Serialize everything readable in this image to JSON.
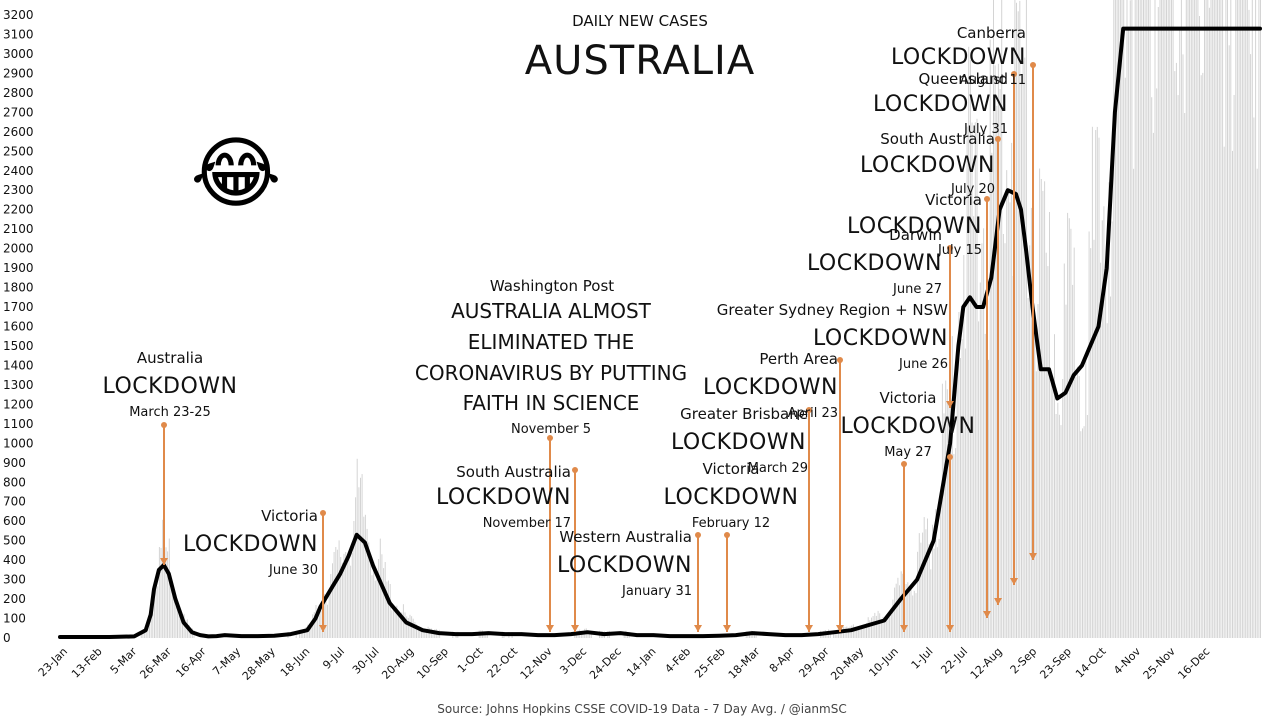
{
  "chart_data": {
    "type": "line",
    "subtitle": "DAILY NEW CASES",
    "title": "AUSTRALIA",
    "source": "Source: Johns Hopkins CSSE COVID-19 Data - 7 Day Avg. / @ianmSC",
    "ylim": [
      0,
      3200
    ],
    "yticks": [
      0,
      100,
      200,
      300,
      400,
      500,
      600,
      700,
      800,
      900,
      1000,
      1100,
      1200,
      1300,
      1400,
      1500,
      1600,
      1700,
      1800,
      1900,
      2000,
      2100,
      2200,
      2300,
      2400,
      2500,
      2600,
      2700,
      2800,
      2900,
      3000,
      3100,
      3200
    ],
    "xticks": [
      "23-Jan",
      "13-Feb",
      "5-Mar",
      "26-Mar",
      "16-Apr",
      "7-May",
      "28-May",
      "18-Jun",
      "9-Jul",
      "30-Jul",
      "20-Aug",
      "10-Sep",
      "1-Oct",
      "22-Oct",
      "12-Nov",
      "3-Dec",
      "24-Dec",
      "14-Jan",
      "4-Feb",
      "25-Feb",
      "18-Mar",
      "8-Apr",
      "29-Apr",
      "20-May",
      "10-Jun",
      "1-Jul",
      "22-Jul",
      "12-Aug",
      "2-Sep",
      "23-Sep",
      "14-Oct",
      "4-Nov",
      "25-Nov",
      "16-Dec"
    ],
    "grid": false,
    "series": [
      {
        "x": [
          0,
          15,
          30,
          45,
          52,
          55,
          57,
          60,
          63,
          66,
          70,
          75,
          80,
          85,
          90,
          95,
          100,
          110,
          120,
          130,
          140,
          150,
          155,
          158,
          165,
          170,
          175,
          180,
          185,
          190,
          200,
          210,
          220,
          230,
          240,
          250,
          260,
          270,
          280,
          290,
          300,
          310,
          320,
          330,
          340,
          350,
          360,
          370,
          380,
          390,
          400,
          410,
          420,
          430,
          440,
          450,
          460,
          470,
          480,
          500,
          510,
          520,
          530,
          540,
          545,
          548,
          552,
          556,
          560,
          565,
          570,
          575,
          580,
          583,
          586,
          590,
          595,
          600,
          605,
          610,
          615,
          620,
          625,
          630,
          635,
          640,
          645,
          650,
          655,
          660,
          665,
          670,
          675,
          680,
          685,
          690,
          695,
          700,
          705,
          710,
          715,
          720,
          725,
          728
        ],
        "y": [
          5,
          5,
          5,
          8,
          40,
          120,
          250,
          350,
          375,
          330,
          200,
          80,
          30,
          15,
          8,
          10,
          15,
          10,
          10,
          12,
          20,
          40,
          100,
          160,
          260,
          330,
          420,
          530,
          490,
          370,
          180,
          80,
          40,
          25,
          20,
          20,
          25,
          20,
          20,
          15,
          15,
          20,
          30,
          20,
          25,
          15,
          15,
          10,
          10,
          10,
          12,
          15,
          25,
          20,
          15,
          15,
          20,
          30,
          40,
          90,
          200,
          300,
          500,
          1000,
          1500,
          1700,
          1750,
          1700,
          1700,
          1850,
          2200,
          2300,
          2280,
          2200,
          2000,
          1700,
          1380,
          1380,
          1230,
          1260,
          1350,
          1400,
          1500,
          1600,
          1900,
          2700,
          3130,
          3130,
          3130,
          3130,
          3130,
          3130,
          3130,
          3130,
          3130,
          3130,
          3130,
          3130,
          3130,
          3130,
          3130,
          3130,
          3130,
          3130
        ]
      }
    ],
    "annotations": [
      {
        "place": "Australia",
        "label": "LOCKDOWN",
        "date": "March 23-25"
      },
      {
        "place": "Victoria",
        "label": "LOCKDOWN",
        "date": "June 30"
      },
      {
        "place": "Washington Post",
        "headline": [
          "AUSTRALIA ALMOST",
          "ELIMINATED THE",
          "CORONAVIRUS BY PUTTING",
          "FAITH IN SCIENCE"
        ],
        "date": "November 5"
      },
      {
        "place": "South Australia",
        "label": "LOCKDOWN",
        "date": "November 17"
      },
      {
        "place": "Western Australia",
        "label": "LOCKDOWN",
        "date": "January 31"
      },
      {
        "place": "Victoria",
        "label": "LOCKDOWN",
        "date": "February 12"
      },
      {
        "place": "Greater Brisbane",
        "label": "LOCKDOWN",
        "date": "March 29"
      },
      {
        "place": "Perth Area",
        "label": "LOCKDOWN",
        "date": "April 23"
      },
      {
        "place": "Victoria",
        "label": "LOCKDOWN",
        "date": "May 27"
      },
      {
        "place": "Greater Sydney Region + NSW",
        "label": "LOCKDOWN",
        "date": "June 26"
      },
      {
        "place": "Darwin",
        "label": "LOCKDOWN",
        "date": "June 27"
      },
      {
        "place": "Victoria",
        "label": "LOCKDOWN",
        "date": "July 15"
      },
      {
        "place": "South Australia",
        "label": "LOCKDOWN",
        "date": "July 20"
      },
      {
        "place": "Queensland",
        "label": "LOCKDOWN",
        "date": "July 31"
      },
      {
        "place": "Canberra",
        "label": "LOCKDOWN",
        "date": "August 11"
      }
    ]
  },
  "emoji": "😂",
  "colors": {
    "line": "#000000",
    "arrow": "#e08a4a",
    "bars": "#d4d4d4"
  }
}
